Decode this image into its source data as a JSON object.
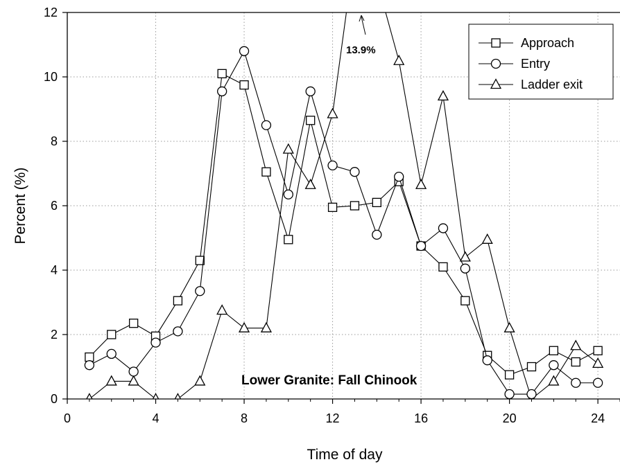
{
  "chart_data": {
    "type": "line",
    "xlabel": "Time of day",
    "ylabel": "Percent (%)",
    "xlim": [
      0,
      25
    ],
    "ylim": [
      0,
      12
    ],
    "xticks": [
      0,
      4,
      8,
      12,
      16,
      20,
      24
    ],
    "yticks": [
      0,
      2,
      4,
      6,
      8,
      10,
      12
    ],
    "grid": "dotted",
    "legend_position": "top-right",
    "annotation": "Lower Granite: Fall Chinook",
    "peak_label": "13.9%",
    "series": [
      {
        "name": "Approach",
        "marker": "square",
        "segments": [
          [
            [
              1,
              1.3
            ],
            [
              2,
              2.0
            ],
            [
              3,
              2.35
            ],
            [
              4,
              1.95
            ],
            [
              5,
              3.05
            ],
            [
              6,
              4.3
            ],
            [
              7,
              10.1
            ],
            [
              8,
              9.75
            ],
            [
              9,
              7.05
            ],
            [
              10,
              4.95
            ],
            [
              11,
              8.65
            ],
            [
              12,
              5.95
            ],
            [
              13,
              6.0
            ],
            [
              14,
              6.1
            ],
            [
              15,
              6.75
            ],
            [
              16,
              4.75
            ],
            [
              17,
              4.1
            ],
            [
              18,
              3.05
            ],
            [
              19,
              1.35
            ],
            [
              20,
              0.75
            ],
            [
              21,
              1.0
            ],
            [
              22,
              1.5
            ],
            [
              23,
              1.15
            ],
            [
              24,
              1.5
            ]
          ]
        ]
      },
      {
        "name": "Entry",
        "marker": "circle",
        "segments": [
          [
            [
              1,
              1.05
            ],
            [
              2,
              1.4
            ],
            [
              3,
              0.85
            ],
            [
              4,
              1.75
            ],
            [
              5,
              2.1
            ],
            [
              6,
              3.35
            ],
            [
              7,
              9.55
            ],
            [
              8,
              10.8
            ],
            [
              9,
              8.5
            ],
            [
              10,
              6.35
            ],
            [
              11,
              9.55
            ],
            [
              12,
              7.25
            ],
            [
              13,
              7.05
            ],
            [
              14,
              5.1
            ],
            [
              15,
              6.9
            ],
            [
              16,
              4.75
            ],
            [
              17,
              5.3
            ],
            [
              18,
              4.05
            ],
            [
              19,
              1.2
            ],
            [
              20,
              0.15
            ],
            [
              21,
              0.15
            ],
            [
              22,
              1.05
            ],
            [
              23,
              0.5
            ],
            [
              24,
              0.5
            ]
          ]
        ]
      },
      {
        "name": "Ladder exit",
        "marker": "triangle",
        "segments": [
          [
            [
              1,
              0
            ],
            [
              2,
              0.55
            ],
            [
              3,
              0.55
            ],
            [
              4,
              0
            ]
          ],
          [
            [
              5,
              0
            ],
            [
              6,
              0.55
            ],
            [
              7,
              2.75
            ],
            [
              8,
              2.2
            ],
            [
              9,
              2.2
            ],
            [
              10,
              7.75
            ],
            [
              11,
              6.65
            ],
            [
              12,
              8.85
            ],
            [
              13,
              13.9
            ],
            [
              14,
              13.0
            ],
            [
              15,
              10.5
            ],
            [
              16,
              6.65
            ],
            [
              17,
              9.4
            ],
            [
              18,
              4.4
            ],
            [
              19,
              4.95
            ],
            [
              20,
              2.2
            ],
            [
              21,
              0
            ],
            [
              22,
              0.55
            ],
            [
              23,
              1.65
            ],
            [
              24,
              1.1
            ]
          ]
        ]
      }
    ]
  }
}
